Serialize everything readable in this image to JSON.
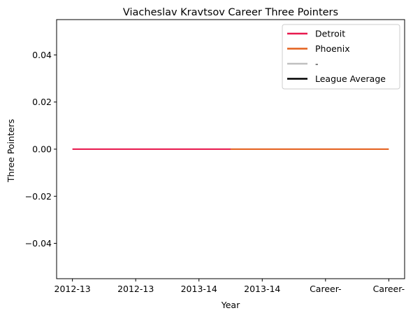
{
  "chart_data": {
    "type": "line",
    "title": "Viacheslav Kravtsov Career Three Pointers",
    "xlabel": "Year",
    "ylabel": "Three Pointers",
    "categories": [
      "2012-13",
      "2012-13",
      "2013-14",
      "2013-14",
      "Career-",
      "Career-"
    ],
    "ylim": [
      -0.055,
      0.055
    ],
    "yticks": [
      -0.04,
      -0.02,
      0.0,
      0.02,
      0.04
    ],
    "ytick_labels": [
      "−0.04",
      "−0.02",
      "0.00",
      "0.02",
      "0.04"
    ],
    "grid": false,
    "legend_position": "top-right",
    "series": [
      {
        "name": "Detroit",
        "color": "#e8194e",
        "points": [
          [
            0,
            0
          ],
          [
            1,
            0
          ],
          [
            2,
            0
          ],
          [
            2.5,
            0
          ]
        ]
      },
      {
        "name": "Phoenix",
        "color": "#e4601d",
        "points": [
          [
            2.5,
            0
          ],
          [
            3,
            0
          ],
          [
            4,
            0
          ],
          [
            5,
            0
          ]
        ]
      },
      {
        "name": "-",
        "color": "#c0c0c0",
        "points": []
      },
      {
        "name": "League Average",
        "color": "#000000",
        "points": []
      }
    ]
  }
}
